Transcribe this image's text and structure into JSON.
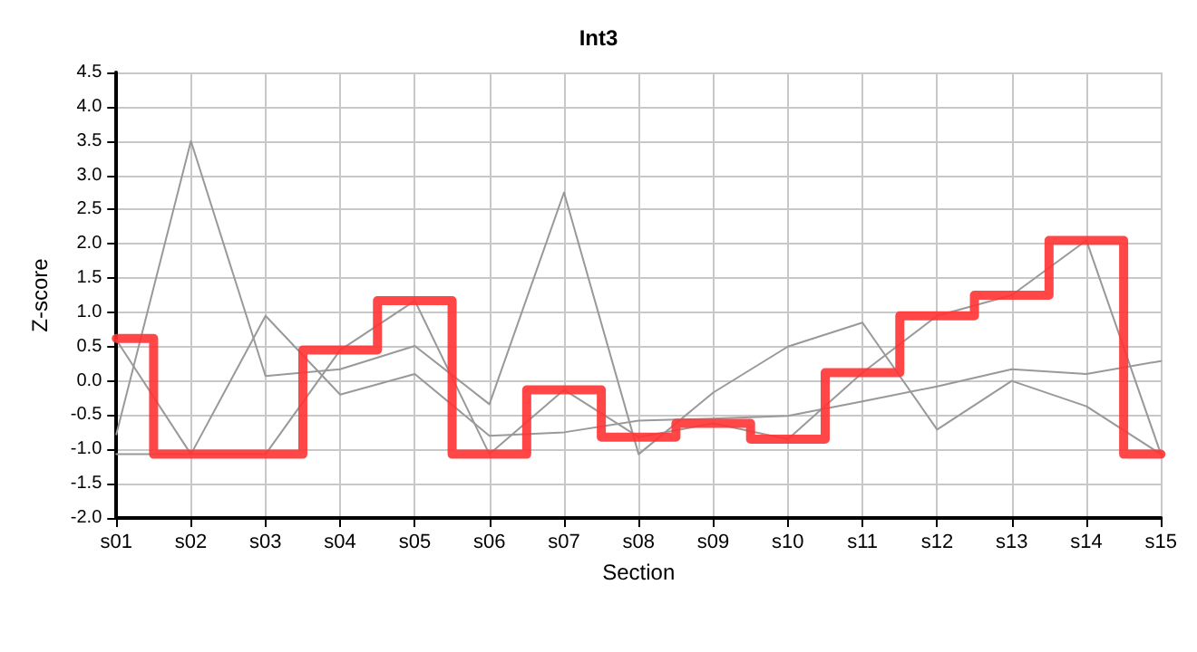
{
  "chart_data": {
    "type": "line",
    "title": "Int3",
    "xlabel": "Section",
    "ylabel": "Z-score",
    "categories": [
      "s01",
      "s02",
      "s03",
      "s04",
      "s05",
      "s06",
      "s07",
      "s08",
      "s09",
      "s10",
      "s11",
      "s12",
      "s13",
      "s14",
      "s15"
    ],
    "series": [
      {
        "color": "#999999",
        "values": [
          -0.78,
          3.5,
          0.07,
          0.17,
          0.51,
          -0.34,
          2.75,
          -1.07,
          -0.17,
          0.5,
          0.85,
          -0.71,
          0.0,
          -0.37,
          -1.07
        ]
      },
      {
        "color": "#999999",
        "values": [
          0.6,
          -1.07,
          0.95,
          -0.2,
          0.1,
          -0.8,
          -0.75,
          -0.58,
          -0.55,
          -0.51,
          -0.3,
          -0.08,
          0.17,
          0.1,
          0.29
        ]
      },
      {
        "color": "#999999",
        "values": [
          -1.07,
          -1.07,
          -1.07,
          0.45,
          1.17,
          -1.07,
          -0.13,
          -0.82,
          -0.62,
          -0.85,
          0.12,
          0.95,
          1.25,
          2.05,
          -1.07
        ]
      },
      {
        "type": "step",
        "color": "#ff3333",
        "values": [
          0.62,
          -1.07,
          -1.07,
          0.45,
          1.17,
          -1.07,
          -0.13,
          -0.82,
          -0.62,
          -0.85,
          0.12,
          0.95,
          1.25,
          2.05,
          -1.07
        ]
      }
    ],
    "ylim": [
      -2.0,
      4.5
    ],
    "yticks": [
      {
        "value": -2,
        "label": "-2.0"
      },
      {
        "value": -1.5,
        "label": "-1.5"
      },
      {
        "value": -1,
        "label": "-1.0"
      },
      {
        "value": -0.5,
        "label": "-0.5"
      },
      {
        "value": 0,
        "label": "0.0"
      },
      {
        "value": 0.5,
        "label": "0.5"
      },
      {
        "value": 1,
        "label": "1.0"
      },
      {
        "value": 1.5,
        "label": "1.5"
      },
      {
        "value": 2,
        "label": "2.0"
      },
      {
        "value": 2.5,
        "label": "2.5"
      },
      {
        "value": 3,
        "label": "3.0"
      },
      {
        "value": 3.5,
        "label": "3.5"
      },
      {
        "value": 4,
        "label": "4.0"
      },
      {
        "value": 4.5,
        "label": "4.5"
      }
    ],
    "grid": true,
    "marker": "none",
    "line_style": "solid"
  }
}
